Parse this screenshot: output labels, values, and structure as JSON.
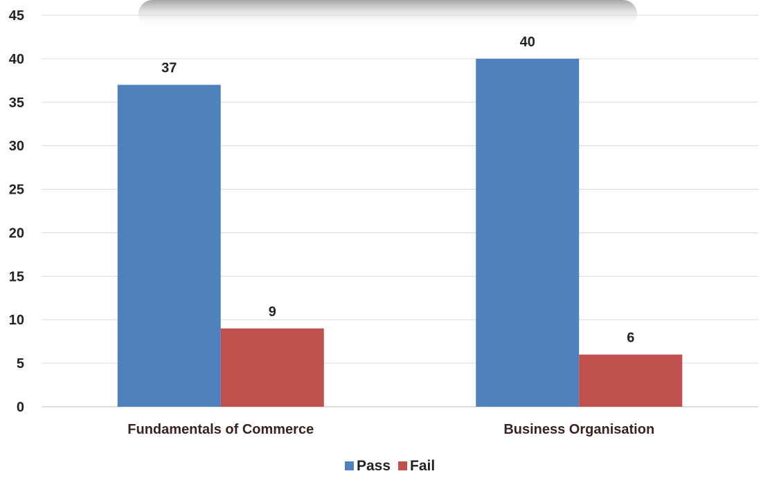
{
  "chart_data": {
    "type": "bar",
    "categories": [
      "Fundamentals of Commerce",
      "Business Organisation"
    ],
    "series": [
      {
        "name": "Pass",
        "values": [
          37,
          40
        ]
      },
      {
        "name": "Fail",
        "values": [
          9,
          6
        ]
      }
    ],
    "title": "",
    "xlabel": "",
    "ylabel": "",
    "ylim": [
      0,
      45
    ],
    "yticks": [
      "0",
      "5",
      "10",
      "15",
      "20",
      "25",
      "30",
      "35",
      "40",
      "45"
    ],
    "grid": true,
    "legend": "bottom",
    "colors": {
      "Pass": "#4f81bd",
      "Fail": "#c0504d"
    }
  }
}
